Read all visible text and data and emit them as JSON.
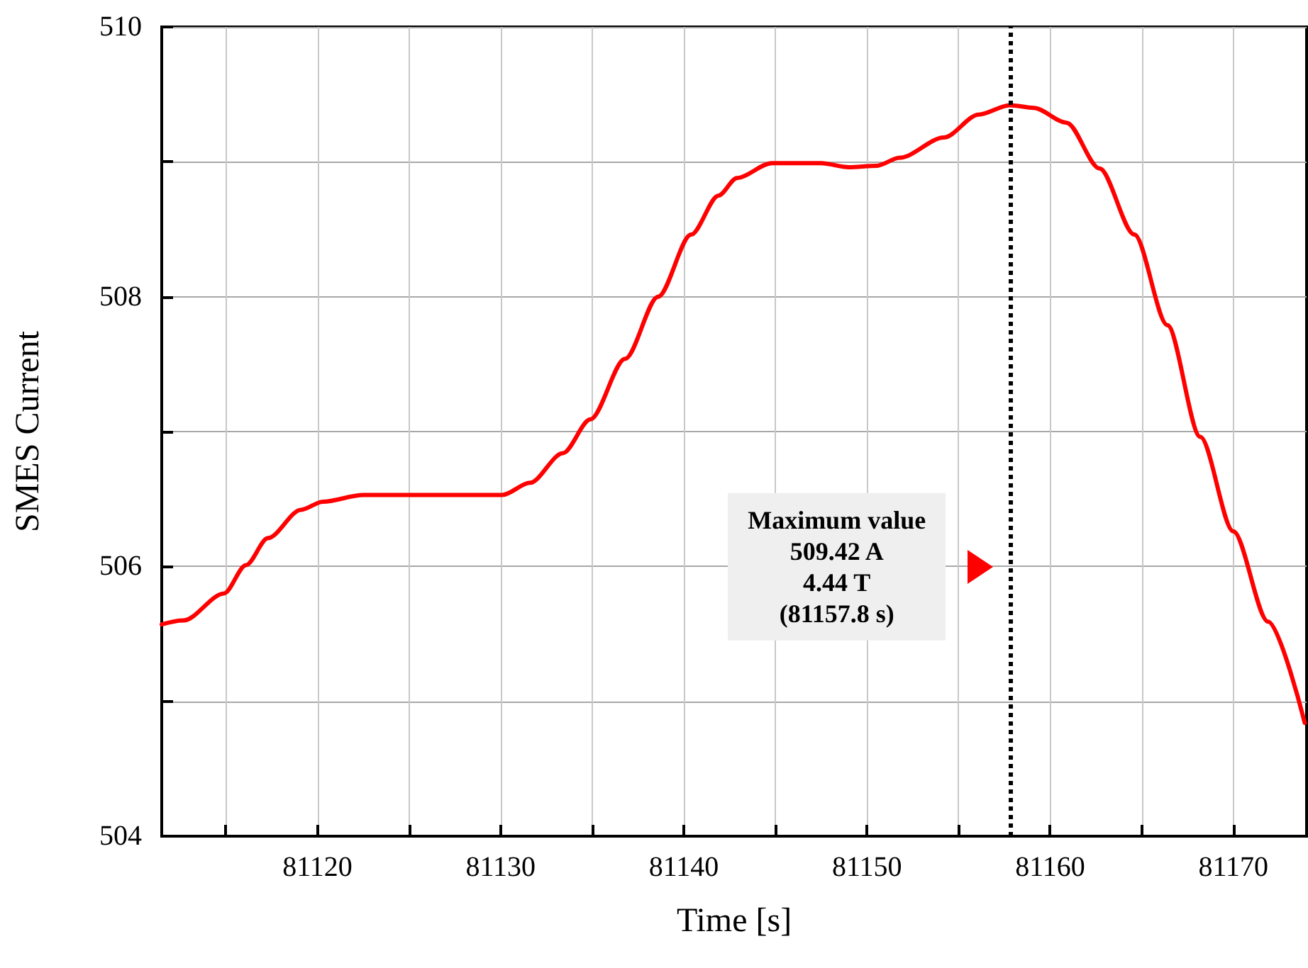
{
  "chart_data": {
    "type": "line",
    "xlabel": "Time [s]",
    "ylabel": "SMES Current",
    "x": [
      81111.5,
      81112.7,
      81114.9,
      81116.1,
      81117.3,
      81119.1,
      81120.3,
      81122.5,
      81126.0,
      81130.1,
      81131.6,
      81133.4,
      81134.9,
      81136.8,
      81138.6,
      81140.4,
      81141.9,
      81142.9,
      81144.8,
      81147.5,
      81149.0,
      81150.5,
      81151.8,
      81154.2,
      81156.1,
      81157.8,
      81159.1,
      81160.9,
      81162.7,
      81164.6,
      81166.4,
      81168.2,
      81170.0,
      81171.9,
      81173.9
    ],
    "series": [
      {
        "color": "#ff0000",
        "values": [
          505.57,
          505.6,
          505.8,
          506.01,
          506.21,
          506.42,
          506.48,
          506.53,
          506.53,
          506.53,
          506.62,
          506.84,
          507.09,
          507.54,
          508.0,
          508.46,
          508.75,
          508.88,
          508.99,
          508.99,
          508.96,
          508.97,
          509.03,
          509.18,
          509.35,
          509.42,
          509.4,
          509.29,
          508.95,
          508.46,
          507.79,
          506.96,
          506.26,
          505.59,
          504.84
        ]
      }
    ],
    "xlim": [
      81111.5,
      81174
    ],
    "xticks": [
      {
        "value": 81115,
        "label": null
      },
      81120,
      {
        "value": 81125,
        "label": null
      },
      81130,
      {
        "value": 81135,
        "label": null
      },
      81140,
      {
        "value": 81145,
        "label": null
      },
      81150,
      {
        "value": 81155,
        "label": null
      },
      81160,
      {
        "value": 81165,
        "label": null
      },
      81170
    ],
    "ylim": [
      504,
      510
    ],
    "yticks": [
      504,
      {
        "value": 505,
        "label": null
      },
      506,
      {
        "value": 507,
        "label": null
      },
      508,
      {
        "value": 509,
        "label": null
      },
      510
    ],
    "grid": true,
    "marker": "none",
    "line_style": "solid",
    "ref_lines": [
      {
        "axis": "x",
        "value": 81157.8,
        "color": "#000000",
        "line_style": "dotted"
      }
    ],
    "annotations": [
      "Maximum value\n509.42 A\n4.44 T\n(81157.8 s)"
    ]
  }
}
